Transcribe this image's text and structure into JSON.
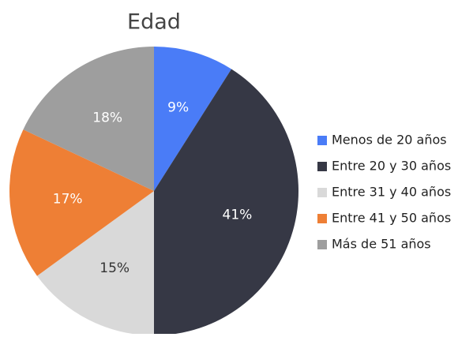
{
  "chart_data": {
    "type": "pie",
    "title": "Edad",
    "categories": [
      "Menos de 20 años",
      "Entre 20 y 30 años",
      "Entre 31 y 40 años",
      "Entre 41 y 50 años",
      "Más de 51 años"
    ],
    "values": [
      9,
      41,
      15,
      17,
      18
    ],
    "value_labels": [
      "9%",
      "41%",
      "15%",
      "17%",
      "18%"
    ],
    "colors": [
      "#4a7cf7",
      "#363845",
      "#d9d9d9",
      "#ee7f35",
      "#9e9e9e"
    ],
    "legend": "right"
  }
}
